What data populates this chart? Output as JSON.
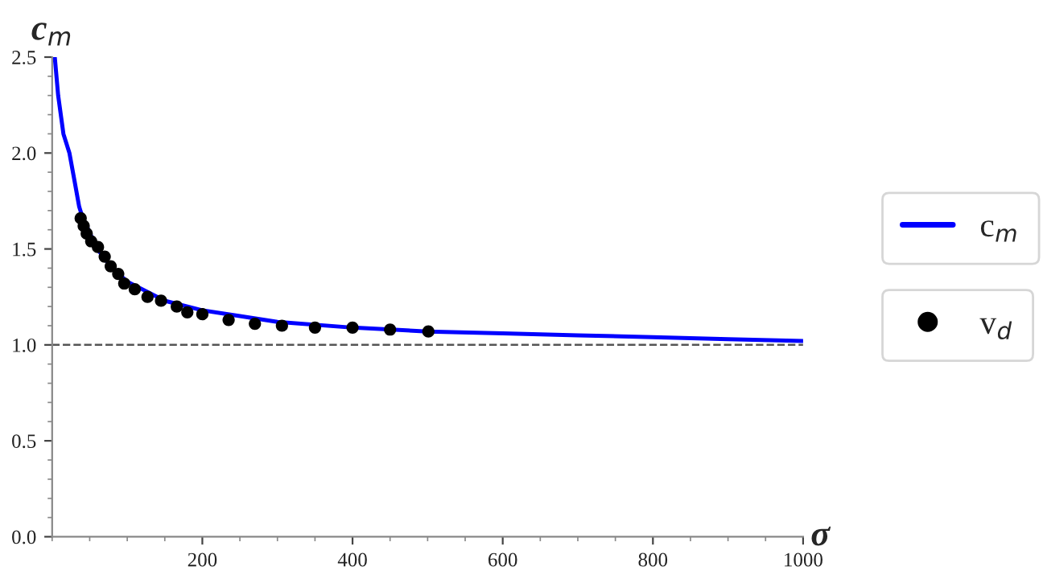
{
  "chart_data": {
    "type": "line",
    "xlabel": "σ",
    "ylabel": "c$_{m}$",
    "xlim": [
      0,
      1000
    ],
    "ylim": [
      0,
      2.5
    ],
    "xticks": [
      200,
      400,
      600,
      800,
      1000
    ],
    "yticks": [
      {
        "value": 0,
        "label": "0.0"
      },
      {
        "value": 0.5,
        "label": "0.5"
      },
      {
        "value": 1,
        "label": "1.0"
      },
      {
        "value": 1.5,
        "label": "1.5"
      },
      {
        "value": 2,
        "label": "2.0"
      },
      {
        "value": 2.5,
        "label": "2.5"
      }
    ],
    "ref_lines": [
      {
        "axis": "y",
        "value": 1,
        "color": "#555555",
        "line_style": "dashed"
      }
    ],
    "legend": "right",
    "grid": false,
    "series": [
      {
        "name": "c$_{m}$",
        "color": "#0000ff",
        "marker": "none",
        "x": [
          3.5,
          8,
          15,
          23,
          30,
          36,
          40,
          60,
          80,
          100,
          150,
          200,
          250,
          300,
          400,
          500,
          600,
          700,
          800,
          900,
          1000
        ],
        "values": [
          2.5,
          2.3,
          2.1,
          2.0,
          1.85,
          1.72,
          1.67,
          1.5,
          1.4,
          1.33,
          1.23,
          1.18,
          1.15,
          1.12,
          1.09,
          1.07,
          1.06,
          1.05,
          1.04,
          1.03,
          1.02
        ]
      },
      {
        "name": "v$_{d}$",
        "type": "scatter",
        "color": "#000000",
        "marker": "circle",
        "x": [
          38,
          42,
          46,
          52,
          61,
          70,
          78,
          88,
          96,
          110,
          127,
          145,
          166,
          180,
          200,
          235,
          270,
          306,
          350,
          400,
          450,
          501
        ],
        "values": [
          1.66,
          1.62,
          1.58,
          1.54,
          1.51,
          1.46,
          1.41,
          1.37,
          1.32,
          1.29,
          1.25,
          1.23,
          1.2,
          1.17,
          1.16,
          1.13,
          1.11,
          1.1,
          1.09,
          1.09,
          1.08,
          1.07
        ]
      }
    ]
  }
}
